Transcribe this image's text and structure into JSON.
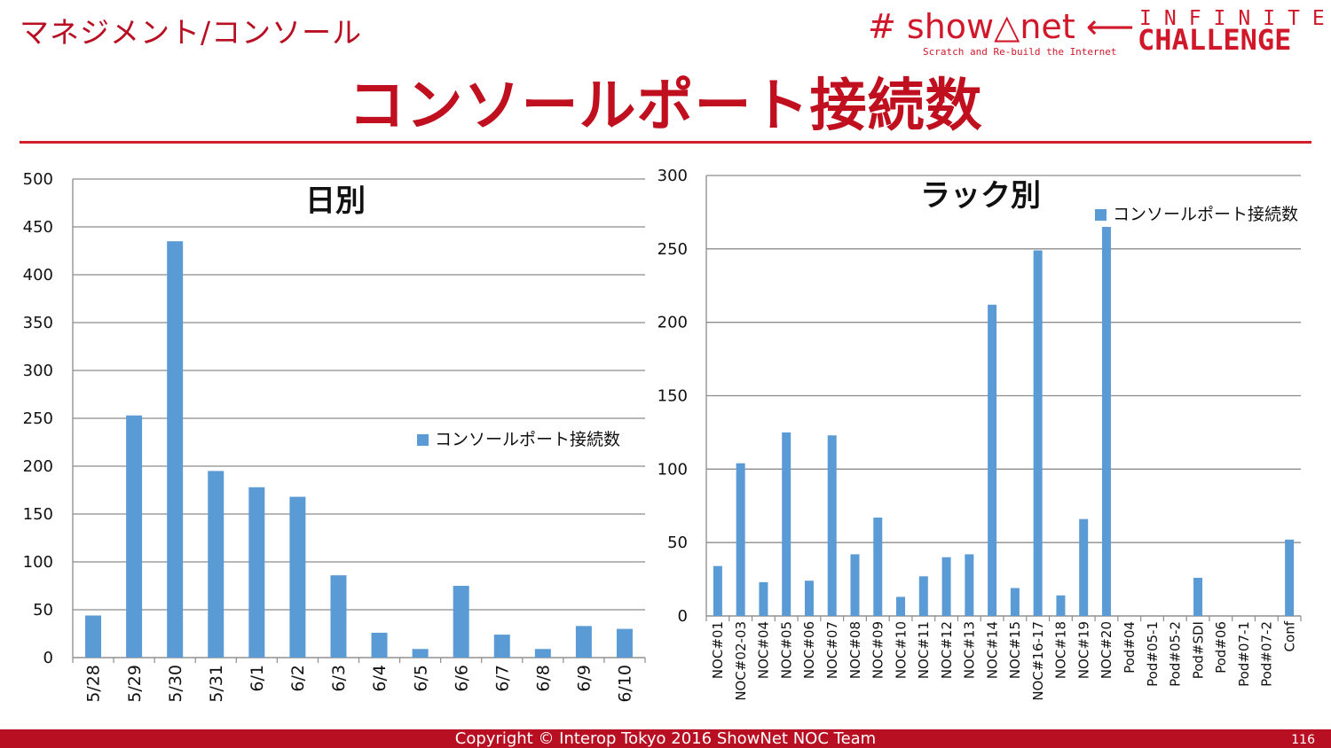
{
  "header": {
    "breadcrumb": "マネジメント/コンソール",
    "title": "コンソールポート接続数"
  },
  "logo": {
    "brand": "# show△net ⟵",
    "tagline": "Scratch and Re-build the Internet",
    "infinite": "INFINITE",
    "challenge": "CHALLENGE"
  },
  "footer": {
    "copyright": "Copyright © Interop Tokyo 2016 ShowNet NOC Team",
    "page": "116"
  },
  "colors": {
    "bar": "#5b9bd5",
    "accent": "#c0101f",
    "grid": "#8c8c8c"
  },
  "chart_data": [
    {
      "type": "bar",
      "title": "日別",
      "categories": [
        "5/28",
        "5/29",
        "5/30",
        "5/31",
        "6/1",
        "6/2",
        "6/3",
        "6/4",
        "6/5",
        "6/6",
        "6/7",
        "6/8",
        "6/9",
        "6/10"
      ],
      "series": [
        {
          "name": "コンソールポート接続数",
          "values": [
            44,
            253,
            435,
            195,
            178,
            168,
            86,
            26,
            9,
            75,
            24,
            9,
            33,
            30
          ]
        }
      ],
      "ylim": [
        0,
        500
      ],
      "yticks": [
        0,
        50,
        100,
        150,
        200,
        250,
        300,
        350,
        400,
        450,
        500
      ],
      "grid": true,
      "legend": "right"
    },
    {
      "type": "bar",
      "title": "ラック別",
      "categories": [
        "NOC#01",
        "NOC#02-03",
        "NOC#04",
        "NOC#05",
        "NOC#06",
        "NOC#07",
        "NOC#08",
        "NOC#09",
        "NOC#10",
        "NOC#11",
        "NOC#12",
        "NOC#13",
        "NOC#14",
        "NOC#15",
        "NOC#16-17",
        "NOC#18",
        "NOC#19",
        "NOC#20",
        "Pod#04",
        "Pod#05-1",
        "Pod#05-2",
        "Pod#SDI",
        "Pod#06",
        "Pod#07-1",
        "Pod#07-2",
        "Conf"
      ],
      "series": [
        {
          "name": "コンソールポート接続数",
          "values": [
            34,
            104,
            23,
            125,
            24,
            123,
            42,
            67,
            13,
            27,
            40,
            42,
            212,
            19,
            249,
            14,
            66,
            265,
            0,
            0,
            0,
            26,
            0,
            0,
            0,
            52
          ]
        }
      ],
      "ylim": [
        0,
        300
      ],
      "yticks": [
        0,
        50,
        100,
        150,
        200,
        250,
        300
      ],
      "grid": true,
      "legend": "top-right"
    }
  ]
}
